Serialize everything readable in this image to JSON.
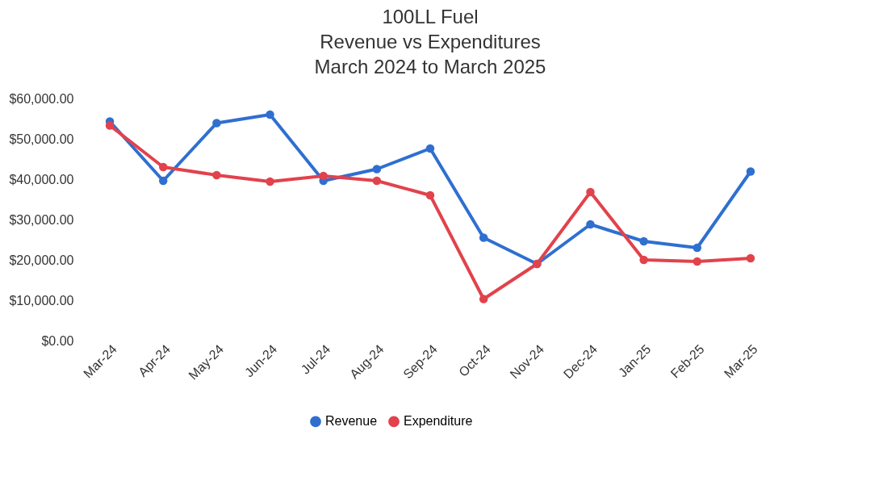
{
  "chart_data": {
    "type": "line",
    "title": "100LL Fuel\nRevenue vs Expenditures\nMarch 2024 to March 2025",
    "categories": [
      "Mar-24",
      "Apr-24",
      "May-24",
      "Jun-24",
      "Jul-24",
      "Aug-24",
      "Sep-24",
      "Oct-24",
      "Nov-24",
      "Dec-24",
      "Jan-25",
      "Feb-25",
      "Mar-25"
    ],
    "series": [
      {
        "name": "Revenue",
        "color": "#2f6fd0",
        "values": [
          54300,
          39600,
          53900,
          56000,
          39600,
          42500,
          47600,
          25500,
          19000,
          28800,
          24600,
          23000,
          41900
        ]
      },
      {
        "name": "Expenditure",
        "color": "#e2424c",
        "values": [
          53300,
          43000,
          41000,
          39400,
          40800,
          39600,
          36000,
          10300,
          19000,
          36800,
          20000,
          19600,
          20400
        ]
      }
    ],
    "ylim": [
      0,
      60000
    ],
    "yticks": [
      {
        "value": 0,
        "label": "$0.00"
      },
      {
        "value": 10000,
        "label": "$10,000.00"
      },
      {
        "value": 20000,
        "label": "$20,000.00"
      },
      {
        "value": 30000,
        "label": "$30,000.00"
      },
      {
        "value": 40000,
        "label": "$40,000.00"
      },
      {
        "value": 50000,
        "label": "$50,000.00"
      },
      {
        "value": 60000,
        "label": "$60,000.00"
      }
    ],
    "grid": false,
    "legend": "bottom",
    "marker": "circle",
    "line_style": "solid"
  }
}
